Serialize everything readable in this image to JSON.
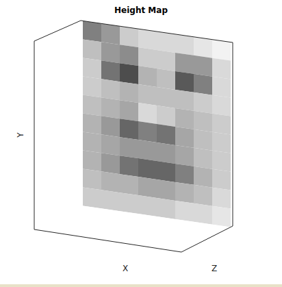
{
  "chart_data": {
    "type": "surface",
    "title": "Height Map",
    "xlabel": "X",
    "ylabel": "Y",
    "zlabel": "Z",
    "tick_labels": false,
    "grid": false,
    "cells": [
      [
        0.5,
        0.6,
        0.8,
        0.85,
        0.85,
        0.85,
        0.9,
        0.95
      ],
      [
        0.75,
        0.6,
        0.55,
        0.8,
        0.8,
        0.6,
        0.6,
        0.85
      ],
      [
        0.8,
        0.45,
        0.3,
        0.7,
        0.75,
        0.35,
        0.5,
        0.85
      ],
      [
        0.8,
        0.75,
        0.7,
        0.75,
        0.75,
        0.75,
        0.8,
        0.85
      ],
      [
        0.75,
        0.7,
        0.65,
        0.85,
        0.8,
        0.7,
        0.75,
        0.8
      ],
      [
        0.7,
        0.6,
        0.4,
        0.5,
        0.45,
        0.65,
        0.75,
        0.8
      ],
      [
        0.7,
        0.65,
        0.6,
        0.6,
        0.6,
        0.65,
        0.75,
        0.8
      ],
      [
        0.7,
        0.6,
        0.45,
        0.4,
        0.4,
        0.5,
        0.7,
        0.8
      ],
      [
        0.75,
        0.7,
        0.7,
        0.65,
        0.65,
        0.7,
        0.75,
        0.85
      ],
      [
        0.8,
        0.8,
        0.8,
        0.8,
        0.8,
        0.85,
        0.85,
        0.9
      ]
    ]
  }
}
